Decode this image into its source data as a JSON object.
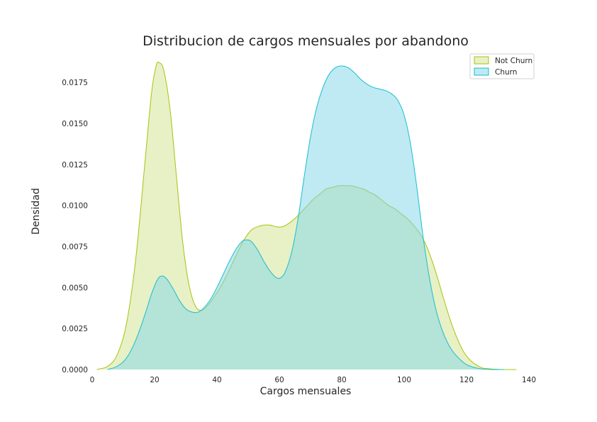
{
  "chart_data": {
    "type": "area",
    "title": "Distribucion de cargos mensuales por abandono",
    "xlabel": "Cargos mensuales",
    "ylabel": "Densidad",
    "xlim": [
      0,
      140
    ],
    "ylim": [
      0,
      0.0185
    ],
    "xticks": [
      0,
      20,
      40,
      60,
      80,
      100,
      120,
      140
    ],
    "xtick_labels": [
      "0",
      "20",
      "40",
      "60",
      "80",
      "100",
      "120",
      "140"
    ],
    "yticks": [
      0,
      0.0025,
      0.005,
      0.0075,
      0.01,
      0.0125,
      0.015,
      0.0175
    ],
    "ytick_labels": [
      "0.0000",
      "0.0025",
      "0.0050",
      "0.0075",
      "0.0100",
      "0.0125",
      "0.0150",
      "0.0175"
    ],
    "grid": false,
    "legend_position": "top-right",
    "series": [
      {
        "name": "Not Churn",
        "line_color": "#a4c40c",
        "fill_color": "#d8e6a0",
        "fill_opacity": 0.6,
        "x": [
          1.5,
          5,
          8,
          11,
          14,
          17,
          19,
          20.5,
          21.5,
          23,
          25,
          27,
          29,
          31,
          33,
          35,
          37,
          39,
          41,
          43,
          45,
          47,
          49,
          51,
          53,
          55,
          57,
          59,
          61,
          63,
          65,
          67,
          69,
          71,
          73,
          75,
          77,
          79,
          81,
          83,
          85,
          87,
          89,
          91,
          93,
          95,
          97,
          99,
          101,
          103,
          105,
          107,
          109,
          111,
          113,
          115,
          117,
          119,
          121,
          123,
          125,
          127,
          129,
          131,
          133,
          135,
          136
        ],
        "y": [
          0.0,
          0.0002,
          0.0009,
          0.0028,
          0.0068,
          0.0128,
          0.0168,
          0.0185,
          0.0187,
          0.0182,
          0.0158,
          0.0118,
          0.0078,
          0.0052,
          0.0039,
          0.0036,
          0.0039,
          0.0044,
          0.005,
          0.0057,
          0.0065,
          0.0073,
          0.008,
          0.0085,
          0.0087,
          0.0088,
          0.0088,
          0.0087,
          0.0087,
          0.0089,
          0.0092,
          0.0096,
          0.01,
          0.0104,
          0.0107,
          0.011,
          0.0111,
          0.0112,
          0.0112,
          0.0112,
          0.0111,
          0.011,
          0.0108,
          0.0106,
          0.0103,
          0.01,
          0.0098,
          0.0095,
          0.0092,
          0.0088,
          0.0083,
          0.0076,
          0.0066,
          0.0054,
          0.0041,
          0.0029,
          0.0019,
          0.0011,
          0.0006,
          0.0003,
          0.0001,
          5e-05,
          2e-05,
          0.0,
          0.0,
          0.0,
          0.0
        ]
      },
      {
        "name": "Churn",
        "line_color": "#17becf",
        "fill_color": "#7fd6e8",
        "fill_opacity": 0.5,
        "x": [
          5,
          8,
          11,
          14,
          17,
          19,
          21,
          22.5,
          24,
          26,
          28,
          30,
          32,
          34,
          36,
          38,
          40,
          42,
          44,
          46,
          48,
          49.5,
          51,
          53,
          55,
          57,
          59,
          60.5,
          62,
          64,
          66,
          68,
          70,
          72,
          74,
          76,
          78,
          80,
          82,
          84,
          86,
          88,
          90,
          92,
          94,
          96,
          98,
          100,
          102,
          104,
          106,
          108,
          110,
          112,
          114,
          116,
          118,
          120,
          122,
          124,
          126,
          128,
          130,
          132
        ],
        "y": [
          0.0,
          0.0002,
          0.0007,
          0.0018,
          0.0034,
          0.0046,
          0.0055,
          0.0057,
          0.0055,
          0.0049,
          0.0042,
          0.0037,
          0.0035,
          0.0035,
          0.0038,
          0.0043,
          0.005,
          0.0058,
          0.0066,
          0.0073,
          0.0078,
          0.0079,
          0.0078,
          0.0073,
          0.0066,
          0.006,
          0.0056,
          0.0056,
          0.006,
          0.0072,
          0.0092,
          0.0118,
          0.0142,
          0.016,
          0.0172,
          0.018,
          0.0184,
          0.0185,
          0.0184,
          0.0181,
          0.0177,
          0.0174,
          0.0172,
          0.0171,
          0.017,
          0.0168,
          0.0164,
          0.0155,
          0.0138,
          0.0112,
          0.0082,
          0.0057,
          0.0038,
          0.0025,
          0.0016,
          0.001,
          0.0006,
          0.0003,
          0.00015,
          6e-05,
          2e-05,
          0.0,
          0.0,
          0.0
        ]
      }
    ]
  }
}
